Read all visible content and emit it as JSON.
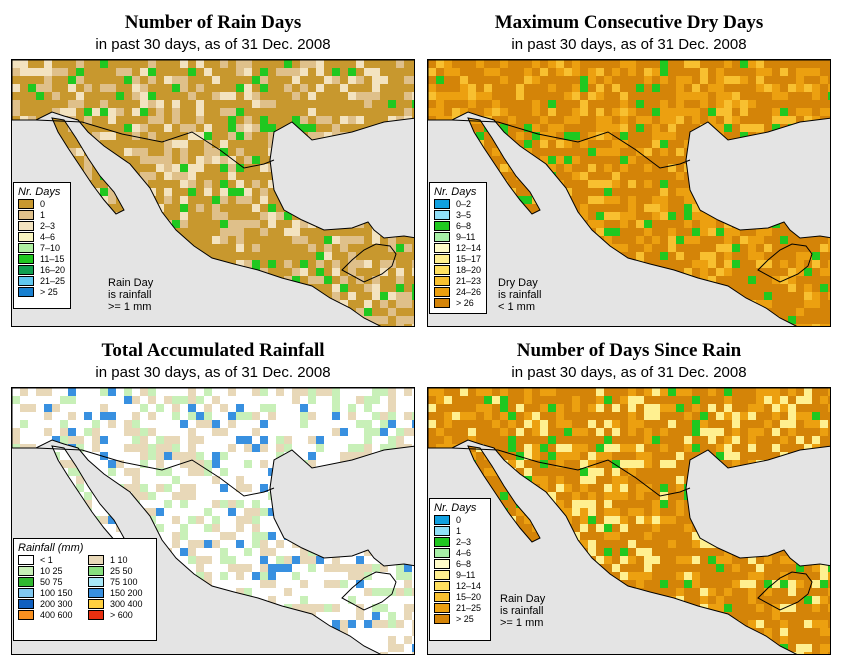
{
  "panels": [
    {
      "title": "Number of Rain Days",
      "subtitle": "in past 30 days, as of  31 Dec. 2008",
      "legend_title": "Nr. Days",
      "legend": [
        {
          "label": "0",
          "color": "#c8982e"
        },
        {
          "label": "1",
          "color": "#dfc08a"
        },
        {
          "label": "2–3",
          "color": "#f3e3c0"
        },
        {
          "label": "4–6",
          "color": "#f8f4c0"
        },
        {
          "label": "7–10",
          "color": "#aef0a0"
        },
        {
          "label": "11–15",
          "color": "#20c820"
        },
        {
          "label": "16–20",
          "color": "#10a050"
        },
        {
          "label": "21–25",
          "color": "#60c8f0"
        },
        {
          "label": "> 25",
          "color": "#1880d0"
        }
      ],
      "note": [
        "Rain Day",
        "is rainfall",
        ">= 1 mm"
      ],
      "palette": [
        "#c8982e",
        "#dfc08a",
        "#f3e3c0",
        "#20c820"
      ]
    },
    {
      "title": "Maximum Consecutive Dry Days",
      "subtitle": "in past 30 days, as of  31 Dec. 2008",
      "legend_title": "Nr. Days",
      "legend": [
        {
          "label": "0–2",
          "color": "#10a0e0"
        },
        {
          "label": "3–5",
          "color": "#90e0f8"
        },
        {
          "label": "6–8",
          "color": "#20c820"
        },
        {
          "label": "9–11",
          "color": "#a8f0a8"
        },
        {
          "label": "12–14",
          "color": "#fffcc8"
        },
        {
          "label": "15–17",
          "color": "#fff090"
        },
        {
          "label": "18–20",
          "color": "#ffe060"
        },
        {
          "label": "21–23",
          "color": "#f8c030"
        },
        {
          "label": "24–26",
          "color": "#eca010"
        },
        {
          "label": "> 26",
          "color": "#d48408"
        }
      ],
      "note": [
        "Dry Day",
        "is rainfall",
        "< 1 mm"
      ],
      "palette": [
        "#d48408",
        "#eca010",
        "#f8c030",
        "#20c820"
      ]
    },
    {
      "title": "Total Accumulated Rainfall",
      "subtitle": "in past 30 days, as of  31 Dec. 2008",
      "legend_title": "Rainfall (mm)",
      "legend": [
        {
          "label": "< 1",
          "color": "#ffffff"
        },
        {
          "label": "1    10",
          "color": "#e8d8b8"
        },
        {
          "label": "10   25",
          "color": "#c8f0b8"
        },
        {
          "label": "25   50",
          "color": "#88e080"
        },
        {
          "label": "50   75",
          "color": "#30b830"
        },
        {
          "label": "75  100",
          "color": "#a8e8f8"
        },
        {
          "label": "100  150",
          "color": "#80c8f0"
        },
        {
          "label": "150  200",
          "color": "#3890e0"
        },
        {
          "label": "200  300",
          "color": "#1060c0"
        },
        {
          "label": "300  400",
          "color": "#ffd040"
        },
        {
          "label": "400  600",
          "color": "#f89020"
        },
        {
          "label": "> 600",
          "color": "#e83010"
        }
      ],
      "note": [],
      "palette": [
        "#ffffff",
        "#e8d8b8",
        "#c8f0b8",
        "#3890e0"
      ]
    },
    {
      "title": "Number of Days Since Rain",
      "subtitle": "in past 30 days, as of  31 Dec. 2008",
      "legend_title": "Nr. Days",
      "legend": [
        {
          "label": "0",
          "color": "#10a0e0"
        },
        {
          "label": "1",
          "color": "#90e0f8"
        },
        {
          "label": "2–3",
          "color": "#20c820"
        },
        {
          "label": "4–6",
          "color": "#a8f0a8"
        },
        {
          "label": "6–8",
          "color": "#fffcc8"
        },
        {
          "label": "9–11",
          "color": "#fff090"
        },
        {
          "label": "12–14",
          "color": "#ffe060"
        },
        {
          "label": "15–20",
          "color": "#f8c030"
        },
        {
          "label": "21–25",
          "color": "#eca010"
        },
        {
          "label": "> 25",
          "color": "#d48408"
        }
      ],
      "note": [
        "Rain Day",
        "is rainfall",
        ">= 1 mm"
      ],
      "palette": [
        "#d48408",
        "#eca010",
        "#fff090",
        "#20c820"
      ]
    }
  ]
}
